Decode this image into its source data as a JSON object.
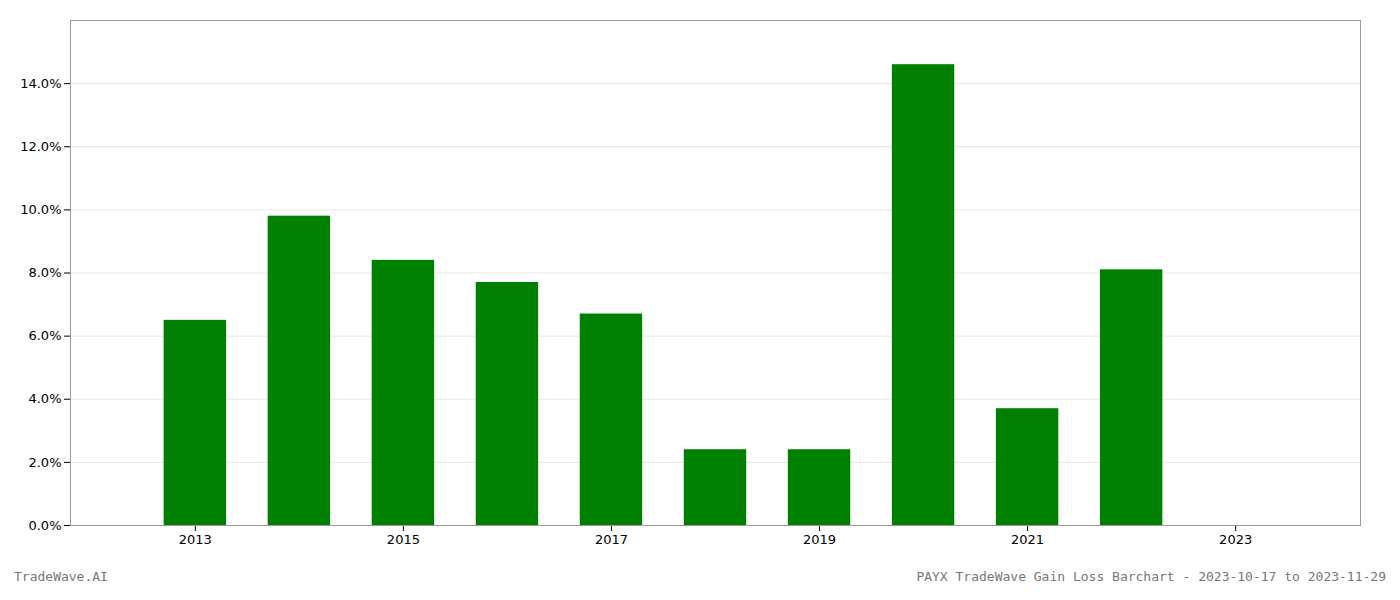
{
  "chart_data": {
    "type": "bar",
    "title": "PAYX TradeWave Gain Loss Barchart - 2023-10-17 to 2023-11-29",
    "annotations": [
      "TradeWave.AI"
    ],
    "x": [
      2013,
      2014,
      2015,
      2016,
      2017,
      2018,
      2019,
      2020,
      2021,
      2022
    ],
    "values": [
      0.065,
      0.098,
      0.084,
      0.077,
      0.067,
      0.024,
      0.024,
      0.146,
      0.037,
      0.081
    ],
    "color": "#008000",
    "xlim": [
      2011.8,
      2024.2
    ],
    "xticks": [
      2013,
      2015,
      2017,
      2019,
      2021,
      2023
    ],
    "ylim": [
      0,
      0.16
    ],
    "yticks": [
      {
        "value": 0.0,
        "label": "0.0%"
      },
      {
        "value": 0.02,
        "label": "2.0%"
      },
      {
        "value": 0.04,
        "label": "4.0%"
      },
      {
        "value": 0.06,
        "label": "6.0%"
      },
      {
        "value": 0.08,
        "label": "8.0%"
      },
      {
        "value": 0.1,
        "label": "10.0%"
      },
      {
        "value": 0.12,
        "label": "12.0%"
      },
      {
        "value": 0.14,
        "label": "14.0%"
      }
    ],
    "grid": true
  }
}
